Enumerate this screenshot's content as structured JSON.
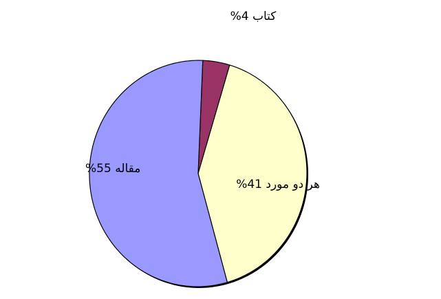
{
  "chart_data": {
    "type": "pie",
    "slices": [
      {
        "label": "کتاب 4%",
        "value": 4,
        "color": "#993366"
      },
      {
        "label": "هر دو مورد 41%",
        "value": 41,
        "color": "#FFFFCC"
      },
      {
        "label": "مقاله 55%",
        "value": 55,
        "color": "#9999FF"
      }
    ],
    "title": "",
    "legend": "none",
    "start": "top",
    "direction": "clockwise"
  }
}
